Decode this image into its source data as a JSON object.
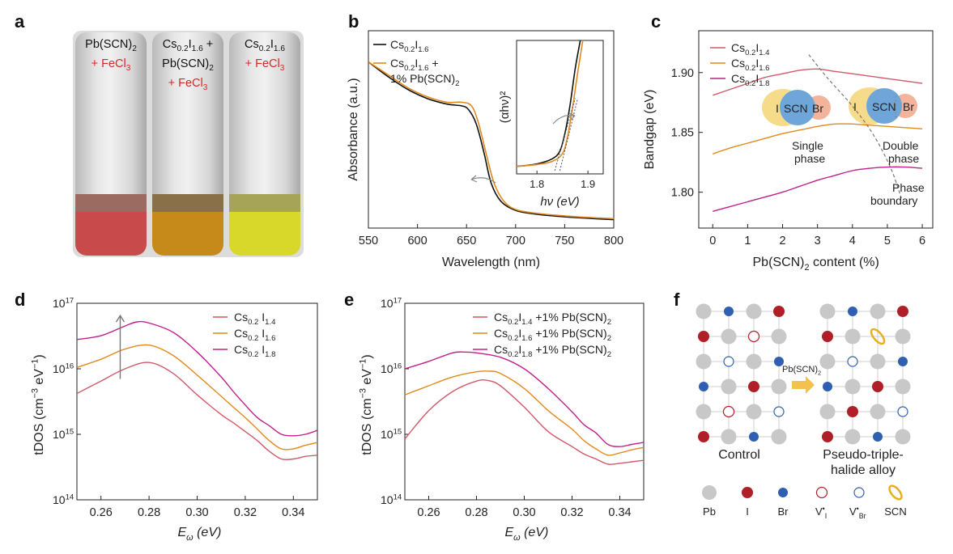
{
  "panels": {
    "a": {
      "letter": "a",
      "vials": [
        {
          "line1": "Pb(SCN)₂",
          "line2": "",
          "line3": "+ FeCl₃",
          "color": "#c84a4a",
          "band": "#9b6a60"
        },
        {
          "line1": "Cs₀.₂I₁.₆ +",
          "line2": "Pb(SCN)₂",
          "line3": "+ FeCl₃",
          "color": "#c68a1a",
          "band": "#8a7048"
        },
        {
          "line1": "Cs₀.₂I₁.₆",
          "line2": "",
          "line3": "+ FeCl₃",
          "color": "#d8d82a",
          "band": "#a6a456"
        }
      ]
    },
    "b": {
      "letter": "b",
      "xlabel": "Wavelength (nm)",
      "ylabel": "Absorbance (a.u.)",
      "legend": [
        "Cs0.2I1.6",
        "Cs0.2I1.6 + 1% Pb(SCN)2"
      ],
      "inset": {
        "xlabel": "hν (eV)",
        "ylabel": "(αhν)²"
      }
    },
    "c": {
      "letter": "c",
      "xlabel": "Pb(SCN)₂ content (%)",
      "ylabel": "Bandgap (eV)",
      "legend": [
        "Cs0.2I1.4",
        "Cs0.2I1.6",
        "Cs0.2I1.8"
      ],
      "annotations": {
        "single_phase_1": "Single",
        "single_phase_2": "phase",
        "double_phase_1": "Double",
        "double_phase_2": "phase",
        "boundary_1": "Phase",
        "boundary_2": "boundary",
        "I": "I",
        "SCN": "SCN",
        "Br": "Br"
      }
    },
    "d": {
      "letter": "d",
      "xlabel": "Eω (eV)",
      "ylabel": "tDOS (cm⁻³ eV⁻¹)",
      "legend": [
        "Cs0.2 I1.4",
        "Cs0.2 I1.6",
        "Cs0.2 I1.8"
      ]
    },
    "e": {
      "letter": "e",
      "xlabel": "Eω (eV)",
      "ylabel": "tDOS (cm⁻³ eV⁻¹)",
      "legend": [
        "Cs0.2I1.4 +1% Pb(SCN)2",
        "Cs0.2I1.6 +1% Pb(SCN)2",
        "Cs0.2I1.8 +1% Pb(SCN)2"
      ]
    },
    "f": {
      "letter": "f",
      "control_label": "Control",
      "alloy_label_1": "Pseudo-triple-",
      "alloy_label_2": "halide alloy",
      "arrow_label": "Pb(SCN)₂",
      "key": [
        {
          "name": "Pb",
          "label": "Pb"
        },
        {
          "name": "I",
          "label": "I"
        },
        {
          "name": "Br",
          "label": "Br"
        },
        {
          "name": "VI",
          "label": "V•I"
        },
        {
          "name": "VBr",
          "label": "V•Br"
        },
        {
          "name": "SCN",
          "label": "SCN"
        }
      ]
    }
  },
  "colors": {
    "black": "#111111",
    "orange": "#e08a1e",
    "red": "#d05a6a",
    "magenta": "#c0208a",
    "gray_atom": "#c8c8c8",
    "iodide": "#b01e28",
    "bromide": "#2f5fb0",
    "scn": "#e6b020",
    "panel_c_I": "#f6dc8a",
    "panel_c_SCN": "#6fa6da",
    "panel_c_Br": "#f4b49c"
  },
  "chart_data": [
    {
      "panel": "b",
      "type": "line",
      "xlabel": "Wavelength (nm)",
      "ylabel": "Absorbance (a.u.)",
      "xlim": [
        550,
        800
      ],
      "xticks": [
        550,
        600,
        650,
        700,
        750,
        800
      ],
      "series": [
        {
          "name": "Cs0.2I1.6",
          "color": "#111111",
          "x": [
            550,
            570,
            590,
            610,
            630,
            645,
            652,
            660,
            668,
            675,
            685,
            700,
            720,
            750,
            780,
            800
          ],
          "y": [
            0.88,
            0.8,
            0.73,
            0.68,
            0.65,
            0.64,
            0.62,
            0.54,
            0.38,
            0.22,
            0.12,
            0.07,
            0.05,
            0.035,
            0.025,
            0.02
          ]
        },
        {
          "name": "Cs0.2I1.6 + 1% Pb(SCN)2",
          "color": "#e08a1e",
          "x": [
            550,
            570,
            590,
            610,
            630,
            645,
            655,
            662,
            670,
            678,
            688,
            700,
            720,
            750,
            780,
            800
          ],
          "y": [
            0.88,
            0.81,
            0.74,
            0.69,
            0.66,
            0.66,
            0.64,
            0.55,
            0.38,
            0.22,
            0.12,
            0.075,
            0.055,
            0.04,
            0.03,
            0.025
          ]
        }
      ]
    },
    {
      "panel": "b-inset",
      "type": "line",
      "xlabel": "hν (eV)",
      "ylabel": "(αhν)²",
      "xlim": [
        1.76,
        1.93
      ],
      "xticks": [
        1.8,
        1.9
      ],
      "series": [
        {
          "name": "Cs0.2I1.6",
          "color": "#111111",
          "x": [
            1.76,
            1.8,
            1.83,
            1.845,
            1.855,
            1.865,
            1.875,
            1.885
          ],
          "y": [
            0.02,
            0.04,
            0.08,
            0.14,
            0.28,
            0.5,
            0.78,
            1.0
          ]
        },
        {
          "name": "Cs0.2I1.6 + 1% Pb(SCN)2",
          "color": "#e08a1e",
          "x": [
            1.76,
            1.8,
            1.83,
            1.85,
            1.86,
            1.87,
            1.88,
            1.89
          ],
          "y": [
            0.02,
            0.035,
            0.06,
            0.12,
            0.25,
            0.48,
            0.75,
            1.0
          ]
        }
      ]
    },
    {
      "panel": "c",
      "type": "line",
      "xlabel": "Pb(SCN)₂ content (%)",
      "ylabel": "Bandgap (eV)",
      "xlim": [
        0,
        6
      ],
      "ylim": [
        1.77,
        1.935
      ],
      "xticks": [
        0,
        1,
        2,
        3,
        4,
        5,
        6
      ],
      "yticks": [
        1.8,
        1.85,
        1.9
      ],
      "series": [
        {
          "name": "Cs0.2I1.4",
          "color": "#d05a6a",
          "x": [
            0,
            0.5,
            1,
            1.5,
            2,
            2.5,
            3,
            3.5,
            4,
            4.5,
            5,
            5.5,
            6
          ],
          "y": [
            1.881,
            1.886,
            1.891,
            1.896,
            1.899,
            1.902,
            1.903,
            1.901,
            1.899,
            1.897,
            1.895,
            1.893,
            1.891
          ]
        },
        {
          "name": "Cs0.2I1.6",
          "color": "#e08a1e",
          "x": [
            0,
            0.5,
            1,
            1.5,
            2,
            2.5,
            3,
            3.5,
            4,
            4.5,
            5,
            5.5,
            6
          ],
          "y": [
            1.832,
            1.837,
            1.841,
            1.845,
            1.849,
            1.852,
            1.855,
            1.857,
            1.857,
            1.856,
            1.855,
            1.854,
            1.853
          ]
        },
        {
          "name": "Cs0.2I1.8",
          "color": "#c0208a",
          "x": [
            0,
            0.5,
            1,
            1.5,
            2,
            2.5,
            3,
            3.5,
            4,
            4.5,
            5,
            5.5,
            6
          ],
          "y": [
            1.784,
            1.788,
            1.792,
            1.796,
            1.8,
            1.805,
            1.81,
            1.814,
            1.818,
            1.82,
            1.821,
            1.821,
            1.82
          ]
        }
      ],
      "boundary": {
        "x": [
          2.75,
          3.3,
          4.0,
          4.6,
          5.1,
          5.4
        ],
        "y": [
          1.915,
          1.895,
          1.872,
          1.848,
          1.82,
          1.795
        ]
      }
    },
    {
      "panel": "d",
      "type": "line",
      "log_y": true,
      "xlabel": "Eω (eV)",
      "ylabel": "tDOS (cm⁻³ eV⁻¹)",
      "xlim": [
        0.25,
        0.35
      ],
      "ylim": [
        100000000000000.0,
        1e+17
      ],
      "xticks": [
        0.26,
        0.28,
        0.3,
        0.32,
        0.34
      ],
      "yticks": [
        100000000000000.0,
        1000000000000000.0,
        1e+16,
        1e+17
      ],
      "series": [
        {
          "name": "Cs0.2 I1.4",
          "color": "#d05a6a",
          "x": [
            0.25,
            0.26,
            0.27,
            0.28,
            0.29,
            0.3,
            0.31,
            0.315,
            0.32,
            0.325,
            0.33,
            0.335,
            0.34,
            0.345,
            0.35
          ],
          "y": [
            4200000000000000.0,
            6500000000000000.0,
            1e+16,
            1.25e+16,
            8500000000000000.0,
            4000000000000000.0,
            2000000000000000.0,
            1500000000000000.0,
            1100000000000000.0,
            800000000000000.0,
            550000000000000.0,
            420000000000000.0,
            420000000000000.0,
            460000000000000.0,
            480000000000000.0
          ]
        },
        {
          "name": "Cs0.2 I1.6",
          "color": "#e08a1e",
          "x": [
            0.25,
            0.26,
            0.27,
            0.28,
            0.29,
            0.3,
            0.31,
            0.315,
            0.32,
            0.325,
            0.33,
            0.335,
            0.34,
            0.345,
            0.35
          ],
          "y": [
            1.05e+16,
            1.4e+16,
            2e+16,
            2.3e+16,
            1.6e+16,
            8000000000000000.0,
            3800000000000000.0,
            2600000000000000.0,
            1800000000000000.0,
            1200000000000000.0,
            800000000000000.0,
            600000000000000.0,
            600000000000000.0,
            680000000000000.0,
            750000000000000.0
          ]
        },
        {
          "name": "Cs0.2 I1.8",
          "color": "#c0208a",
          "x": [
            0.25,
            0.26,
            0.27,
            0.275,
            0.28,
            0.29,
            0.3,
            0.31,
            0.315,
            0.32,
            0.325,
            0.33,
            0.335,
            0.34,
            0.345,
            0.35
          ],
          "y": [
            2.8e+16,
            3.2e+16,
            4.5e+16,
            5.2e+16,
            5e+16,
            3.6e+16,
            1.8e+16,
            7500000000000000.0,
            4500000000000000.0,
            2800000000000000.0,
            1800000000000000.0,
            1350000000000000.0,
            1000000000000000.0,
            950000000000000.0,
            1000000000000000.0,
            1150000000000000.0
          ]
        }
      ],
      "arrow": {
        "x": 0.268,
        "y_from": 7000000000000000.0,
        "y_to": 6.5e+16
      }
    },
    {
      "panel": "e",
      "type": "line",
      "log_y": true,
      "xlabel": "Eω (eV)",
      "ylabel": "tDOS (cm⁻³ eV⁻¹)",
      "xlim": [
        0.25,
        0.35
      ],
      "ylim": [
        100000000000000.0,
        1e+17
      ],
      "xticks": [
        0.26,
        0.28,
        0.3,
        0.32,
        0.34
      ],
      "yticks": [
        100000000000000.0,
        1000000000000000.0,
        1e+16,
        1e+17
      ],
      "series": [
        {
          "name": "Cs0.2I1.4 +1% Pb(SCN)2",
          "color": "#d05a6a",
          "x": [
            0.25,
            0.26,
            0.27,
            0.28,
            0.285,
            0.29,
            0.3,
            0.31,
            0.32,
            0.325,
            0.33,
            0.335,
            0.34,
            0.345,
            0.35
          ],
          "y": [
            850000000000000.0,
            2300000000000000.0,
            4500000000000000.0,
            6500000000000000.0,
            6600000000000000.0,
            5500000000000000.0,
            2600000000000000.0,
            1100000000000000.0,
            650000000000000.0,
            500000000000000.0,
            420000000000000.0,
            350000000000000.0,
            360000000000000.0,
            380000000000000.0,
            400000000000000.0
          ]
        },
        {
          "name": "Cs0.2I1.6 +1% Pb(SCN)2",
          "color": "#e08a1e",
          "x": [
            0.25,
            0.26,
            0.27,
            0.28,
            0.285,
            0.29,
            0.3,
            0.31,
            0.32,
            0.325,
            0.33,
            0.335,
            0.34,
            0.345,
            0.35
          ],
          "y": [
            4000000000000000.0,
            5500000000000000.0,
            7500000000000000.0,
            9000000000000000.0,
            9200000000000000.0,
            8500000000000000.0,
            5000000000000000.0,
            2300000000000000.0,
            1200000000000000.0,
            800000000000000.0,
            600000000000000.0,
            480000000000000.0,
            520000000000000.0,
            580000000000000.0,
            630000000000000.0
          ]
        },
        {
          "name": "Cs0.2I1.8 +1% Pb(SCN)2",
          "color": "#c0208a",
          "x": [
            0.25,
            0.26,
            0.27,
            0.275,
            0.28,
            0.29,
            0.3,
            0.31,
            0.32,
            0.325,
            0.33,
            0.335,
            0.34,
            0.345,
            0.35
          ],
          "y": [
            1e+16,
            1.3e+16,
            1.75e+16,
            1.8e+16,
            1.75e+16,
            1.5e+16,
            1e+16,
            5000000000000000.0,
            2200000000000000.0,
            1400000000000000.0,
            1050000000000000.0,
            700000000000000.0,
            650000000000000.0,
            700000000000000.0,
            750000000000000.0
          ]
        }
      ]
    }
  ]
}
